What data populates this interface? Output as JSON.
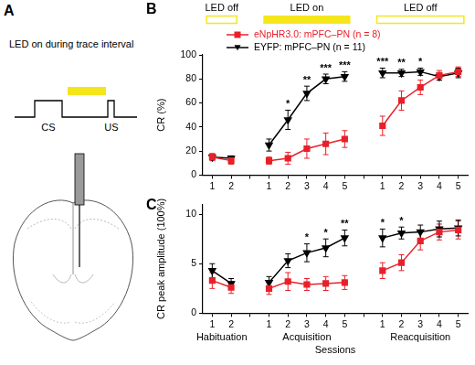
{
  "panel_a": {
    "label": "A",
    "title": "LED on during trace interval",
    "cs": "CS",
    "us": "US",
    "color": "#f5e61c"
  },
  "chart_data": [
    {
      "panel": "B",
      "type": "line",
      "categories": [
        "1",
        "2",
        null,
        "1",
        "2",
        "3",
        "4",
        "5",
        null,
        "1",
        "2",
        "3",
        "4",
        "5"
      ],
      "series": [
        {
          "name": "eNpHR3.0: mPFC–PN (n = 8)",
          "color": "#e8202a",
          "marker": "square",
          "values": [
            15,
            12,
            null,
            12,
            14,
            22,
            26,
            30,
            null,
            41,
            62,
            73,
            83,
            86
          ],
          "errors": [
            3,
            3,
            null,
            3,
            5,
            8,
            9,
            7,
            null,
            8,
            8,
            6,
            4,
            4
          ]
        },
        {
          "name": "EYFP: mPFC–PN (n = 11)",
          "color": "#000000",
          "marker": "triangle-down",
          "values": [
            15,
            14,
            null,
            25,
            46,
            68,
            80,
            82,
            null,
            85,
            85,
            86,
            82,
            85
          ],
          "errors": [
            2,
            2,
            null,
            5,
            8,
            6,
            4,
            4,
            null,
            4,
            3,
            3,
            3,
            4
          ]
        }
      ],
      "ylabel": "CR (%)",
      "ylim": [
        0,
        100
      ],
      "yticks": [
        0,
        20,
        40,
        60,
        80,
        100
      ],
      "grid": false,
      "legend": "top left",
      "significance": [
        null,
        null,
        null,
        null,
        "*",
        "**",
        "***",
        "***",
        null,
        "***",
        "**",
        "*",
        null,
        null
      ],
      "led_phases": [
        {
          "label": "LED off",
          "color": "#f5e61c",
          "filled": false
        },
        {
          "label": "LED on",
          "color": "#f5e61c",
          "filled": true
        },
        {
          "label": "LED off",
          "color": "#f5e61c",
          "filled": false
        }
      ]
    },
    {
      "panel": "C",
      "type": "line",
      "categories": [
        "1",
        "2",
        null,
        "1",
        "2",
        "3",
        "4",
        "5",
        null,
        "1",
        "2",
        "3",
        "4",
        "5"
      ],
      "series": [
        {
          "color": "#e8202a",
          "marker": "square",
          "values": [
            3.3,
            2.6,
            null,
            2.5,
            3.2,
            2.9,
            3.0,
            3.1,
            null,
            4.3,
            5.1,
            7.3,
            8.2,
            8.4
          ],
          "errors": [
            0.8,
            0.6,
            null,
            0.6,
            0.9,
            0.6,
            0.7,
            0.7,
            null,
            0.8,
            0.8,
            0.9,
            0.8,
            0.9
          ]
        },
        {
          "color": "#000000",
          "marker": "triangle-down",
          "values": [
            4.3,
            3.0,
            null,
            3.1,
            5.3,
            6.1,
            6.6,
            7.6,
            null,
            7.6,
            8.1,
            8.2,
            8.5,
            8.6
          ],
          "errors": [
            0.7,
            0.5,
            null,
            0.6,
            0.7,
            0.9,
            0.9,
            0.8,
            null,
            0.9,
            0.6,
            0.7,
            0.8,
            0.8
          ]
        }
      ],
      "ylabel": "CR peak amplitude (100%)",
      "xlabel": "Sessions",
      "ylim": [
        0,
        11
      ],
      "yticks": [
        0,
        5,
        10
      ],
      "grid": false,
      "significance": [
        null,
        null,
        null,
        null,
        null,
        "*",
        "*",
        "**",
        null,
        "*",
        "*",
        null,
        null,
        null
      ],
      "group_labels": [
        "Habituation",
        "Acquisition",
        "Reacquisition"
      ]
    }
  ]
}
